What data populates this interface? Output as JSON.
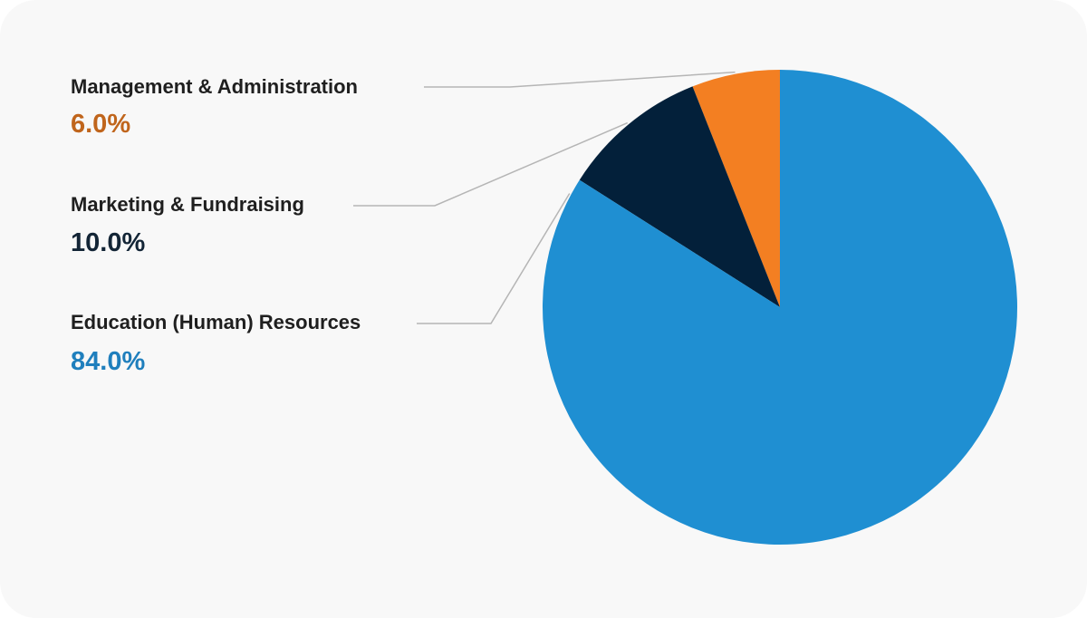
{
  "chart_data": {
    "type": "pie",
    "title": "",
    "legend_placement": "left",
    "slices": [
      {
        "label": "Management & Administration",
        "value": 6.0,
        "value_label": "6.0%",
        "color": "#f37f22",
        "text_color": "#c0651c"
      },
      {
        "label": "Marketing & Fundraising",
        "value": 10.0,
        "value_label": "10.0%",
        "color": "#03203a",
        "text_color": "#132536"
      },
      {
        "label": "Education (Human) Resources",
        "value": 84.0,
        "value_label": "84.0%",
        "color": "#1f8fd2",
        "text_color": "#1f7fbd"
      }
    ]
  }
}
